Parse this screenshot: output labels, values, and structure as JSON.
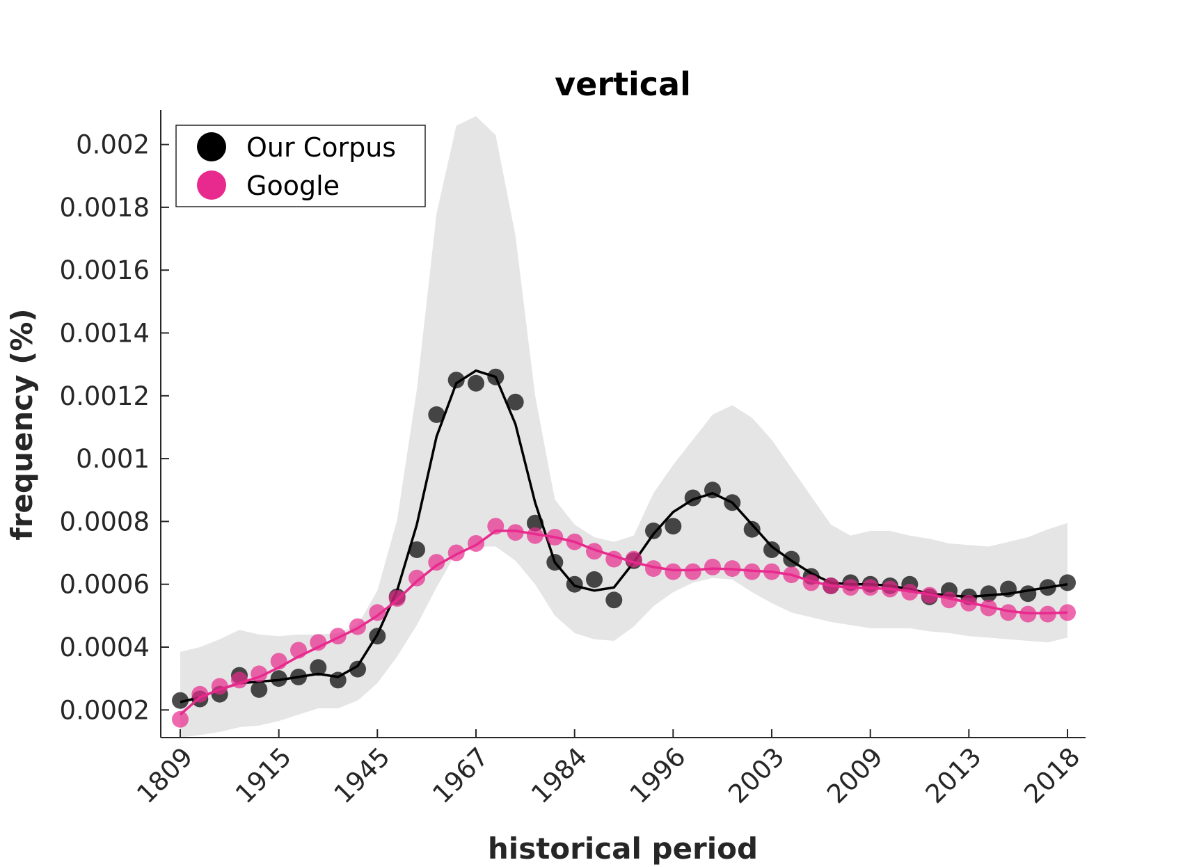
{
  "chart_data": {
    "type": "line",
    "title": "vertical",
    "xlabel": "historical period",
    "ylabel": "frequency (%)",
    "x_tick_labels": [
      "1809",
      "1915",
      "1945",
      "1967",
      "1984",
      "1996",
      "2003",
      "2009",
      "2013",
      "2018"
    ],
    "y_ticks": [
      0.0002,
      0.0004,
      0.0006,
      0.0008,
      0.001,
      0.0012,
      0.0014,
      0.0016,
      0.0018,
      0.002
    ],
    "y_tick_labels": [
      "0.0002",
      "0.0004",
      "0.0006",
      "0.0008",
      "0.001",
      "0.0012",
      "0.0014",
      "0.0016",
      "0.0018",
      "0.002"
    ],
    "ylim": [
      0.000112,
      0.00211
    ],
    "grid": false,
    "legend_position": "top-left",
    "colors": {
      "corpus": "#000000",
      "google": "#e8298d",
      "band": "#e5e5e5"
    },
    "series": [
      {
        "name": "Our Corpus",
        "points": [
          0.00023,
          0.000235,
          0.00025,
          0.00031,
          0.000265,
          0.0003,
          0.000305,
          0.000335,
          0.000295,
          0.00033,
          0.000435,
          0.00056,
          0.00071,
          0.00114,
          0.00125,
          0.00124,
          0.00126,
          0.00118,
          0.000795,
          0.00067,
          0.0006,
          0.000615,
          0.00055,
          0.000675,
          0.00077,
          0.000785,
          0.000875,
          0.0009,
          0.00086,
          0.000775,
          0.00071,
          0.00068,
          0.000625,
          0.000595,
          0.000605,
          0.0006,
          0.000595,
          0.0006,
          0.00056,
          0.00058,
          0.00056,
          0.00057,
          0.000585,
          0.00057,
          0.00059,
          0.000605
        ],
        "smooth": [
          0.000225,
          0.00024,
          0.000265,
          0.000285,
          0.00029,
          0.000295,
          0.000305,
          0.000315,
          0.000305,
          0.00034,
          0.00044,
          0.00058,
          0.00079,
          0.00107,
          0.00124,
          0.00128,
          0.00126,
          0.00111,
          0.00086,
          0.00067,
          0.000595,
          0.00058,
          0.00059,
          0.00067,
          0.00076,
          0.00083,
          0.00087,
          0.00089,
          0.00086,
          0.00079,
          0.00072,
          0.000675,
          0.000635,
          0.000605,
          0.0006,
          0.0006,
          0.000595,
          0.000585,
          0.00057,
          0.000565,
          0.00056,
          0.000565,
          0.00057,
          0.00058,
          0.00059,
          0.0006
        ]
      },
      {
        "name": "Google",
        "points": [
          0.00017,
          0.00025,
          0.000275,
          0.000295,
          0.000315,
          0.000355,
          0.00039,
          0.000415,
          0.000435,
          0.000465,
          0.00051,
          0.000555,
          0.00062,
          0.00067,
          0.0007,
          0.00073,
          0.000785,
          0.000765,
          0.000755,
          0.00075,
          0.000735,
          0.000705,
          0.00068,
          0.00068,
          0.00065,
          0.00064,
          0.00064,
          0.000655,
          0.00065,
          0.00064,
          0.00064,
          0.00063,
          0.000605,
          0.000595,
          0.00059,
          0.00059,
          0.000585,
          0.000575,
          0.000565,
          0.00055,
          0.00054,
          0.000525,
          0.00051,
          0.000505,
          0.000505,
          0.00051
        ],
        "smooth": [
          0.000185,
          0.00024,
          0.000265,
          0.000285,
          0.000305,
          0.000335,
          0.00037,
          0.0004,
          0.00043,
          0.00046,
          0.0005,
          0.00055,
          0.00061,
          0.00066,
          0.000695,
          0.000725,
          0.00077,
          0.00077,
          0.00076,
          0.00075,
          0.000735,
          0.00071,
          0.00069,
          0.00067,
          0.000655,
          0.000645,
          0.000645,
          0.00065,
          0.000648,
          0.000643,
          0.00064,
          0.00063,
          0.00061,
          0.000595,
          0.00059,
          0.000588,
          0.000585,
          0.000578,
          0.000568,
          0.000555,
          0.000542,
          0.000528,
          0.000515,
          0.000508,
          0.000508,
          0.00051
        ]
      }
    ],
    "confidence_band": {
      "upper": [
        0.000385,
        0.0004,
        0.000425,
        0.000455,
        0.00044,
        0.000435,
        0.00044,
        0.00044,
        0.000445,
        0.00047,
        0.00058,
        0.000805,
        0.00122,
        0.00178,
        0.00206,
        0.00209,
        0.00203,
        0.00171,
        0.0012,
        0.00087,
        0.00079,
        0.00075,
        0.000735,
        0.000755,
        0.00089,
        0.00098,
        0.00106,
        0.00114,
        0.00117,
        0.00113,
        0.00106,
        0.00097,
        0.00088,
        0.00079,
        0.000755,
        0.00077,
        0.00077,
        0.000755,
        0.000745,
        0.00073,
        0.000725,
        0.00072,
        0.000735,
        0.00075,
        0.000775,
        0.000795
      ],
      "lower": [
        0.000112,
        0.00012,
        0.00013,
        0.000145,
        0.00015,
        0.000165,
        0.000185,
        0.000205,
        0.000205,
        0.00023,
        0.000285,
        0.00037,
        0.00047,
        0.00059,
        0.0007,
        0.00072,
        0.00072,
        0.000675,
        0.0006,
        0.0005,
        0.000445,
        0.000425,
        0.00042,
        0.000465,
        0.00053,
        0.000575,
        0.000605,
        0.00062,
        0.000615,
        0.000575,
        0.00054,
        0.00051,
        0.000495,
        0.00048,
        0.00047,
        0.00046,
        0.00046,
        0.00046,
        0.00045,
        0.000445,
        0.000435,
        0.00043,
        0.000425,
        0.00042,
        0.000415,
        0.00043
      ]
    },
    "legend_entries": [
      "Our Corpus",
      "Google"
    ]
  }
}
